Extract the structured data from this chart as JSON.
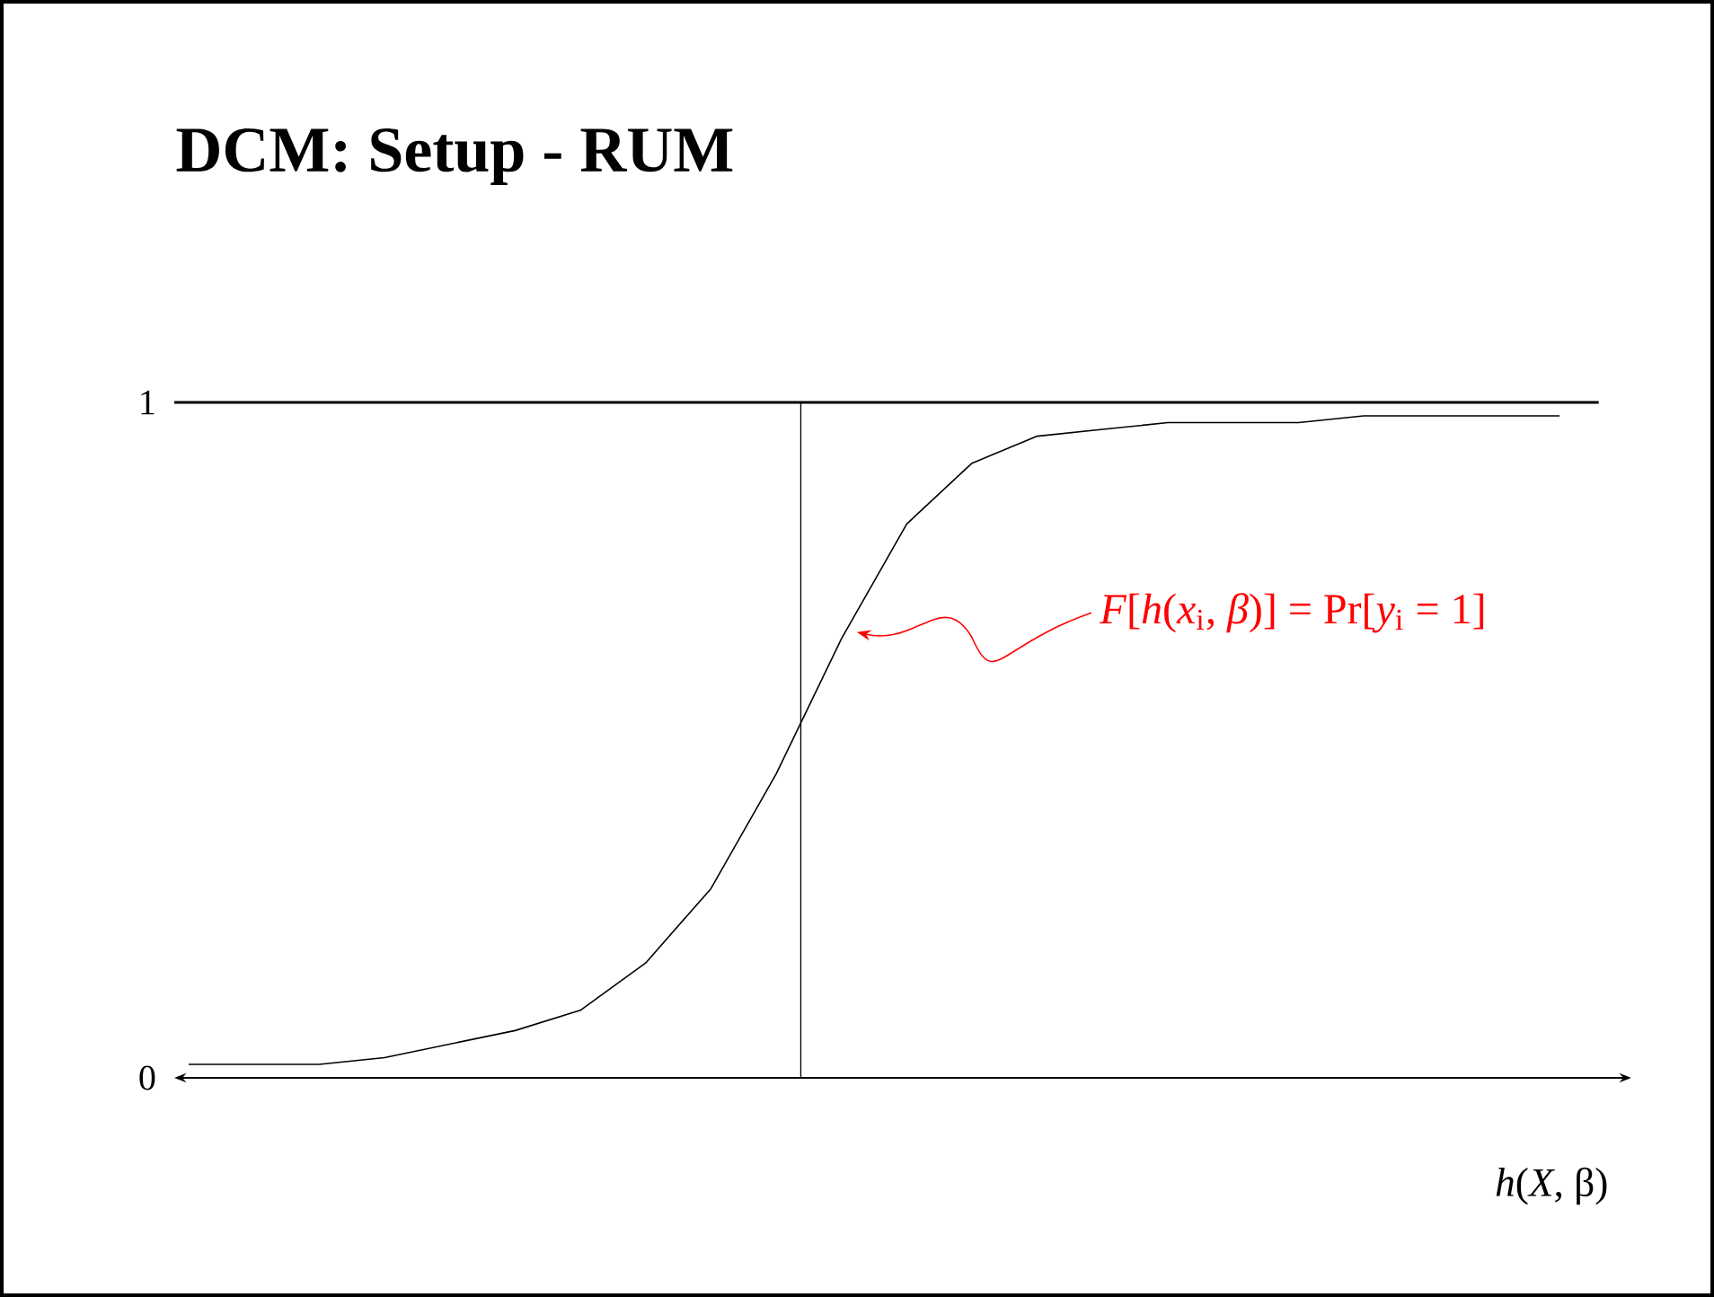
{
  "chart_data": {
    "type": "line",
    "title": "DCM: Setup - RUM",
    "xlabel": "*h*(*X*, β)",
    "categories": [
      null,
      null,
      null,
      null,
      null,
      null,
      null,
      null,
      null,
      null,
      null,
      null,
      null,
      null,
      null,
      null,
      null,
      null,
      null,
      null,
      null,
      null
    ],
    "series": [
      {
        "color": "#000000",
        "values": [
          0.02,
          0.02,
          0.02,
          0.03,
          0.05,
          0.07,
          0.1,
          0.17,
          0.28,
          0.45,
          0.65,
          0.82,
          0.91,
          0.95,
          0.96,
          0.97,
          0.97,
          0.97,
          0.98,
          0.98,
          0.98,
          0.98
        ]
      }
    ],
    "ylim": [
      0,
      1
    ],
    "yticks": [
      0,
      1
    ],
    "tick_labels": "y",
    "marker": "none",
    "line_style": "solid",
    "ref_lines": [
      {
        "axis": "y",
        "value": 1
      }
    ],
    "annotations": [
      "*F*[*h*(*x*$_{i}$, *β*)] = Pr[*y*$_{i}$ = 1]"
    ]
  }
}
